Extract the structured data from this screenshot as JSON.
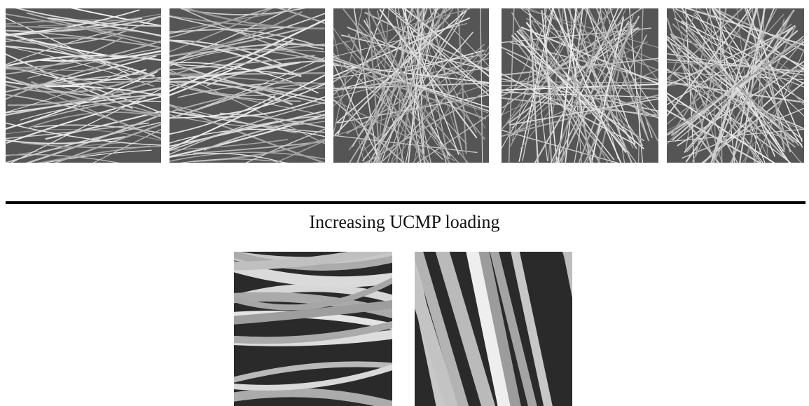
{
  "figure": {
    "caption": "Increasing UCMP loading"
  }
}
